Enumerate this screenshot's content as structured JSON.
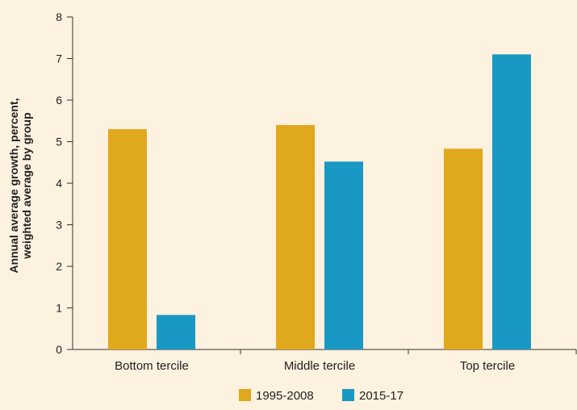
{
  "chart_data": {
    "type": "bar",
    "title": "",
    "xlabel": "",
    "ylabel_lines": [
      "Annual average growth, percent,",
      "weighted average by group"
    ],
    "categories": [
      "Bottom tercile",
      "Middle tercile",
      "Top tercile"
    ],
    "series": [
      {
        "name": "1995-2008",
        "color": "#e0a81c",
        "values": [
          5.3,
          5.4,
          4.83
        ]
      },
      {
        "name": "2015-17",
        "color": "#1a98c4",
        "values": [
          0.83,
          4.52,
          7.1
        ]
      }
    ],
    "ylim": [
      0,
      8
    ],
    "yticks": [
      0,
      1,
      2,
      3,
      4,
      5,
      6,
      7,
      8
    ],
    "grid": false,
    "legend_position": "bottom-center"
  }
}
